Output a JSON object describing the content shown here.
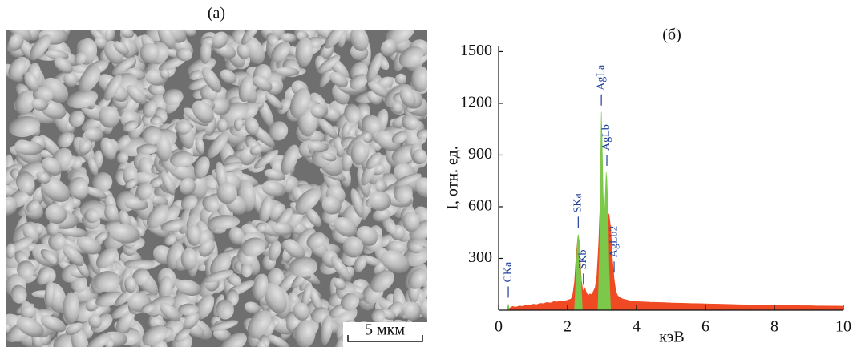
{
  "panel_a": {
    "title": "(а)",
    "scale_bar": "5 мкм"
  },
  "chart_data": {
    "type": "area",
    "title": "(б)",
    "xlabel": "кэВ",
    "ylabel": "I, отн. ед.",
    "xlim": [
      0,
      10
    ],
    "ylim": [
      0,
      1530
    ],
    "xticks": [
      0,
      2,
      4,
      6,
      8,
      10
    ],
    "yticks": [
      300,
      600,
      900,
      1200,
      1500
    ],
    "series": [
      {
        "color": "#ef4a23",
        "x": [
          0.3,
          0.4,
          0.5,
          0.6,
          0.7,
          0.8,
          0.9,
          1.0,
          1.1,
          1.2,
          1.3,
          1.4,
          1.5,
          1.6,
          1.7,
          1.8,
          1.9,
          2.0,
          2.1,
          2.15,
          2.2,
          2.25,
          2.3,
          2.35,
          2.4,
          2.45,
          2.5,
          2.55,
          2.6,
          2.65,
          2.7,
          2.75,
          2.8,
          2.85,
          2.9,
          2.95,
          3.0,
          3.05,
          3.1,
          3.15,
          3.2,
          3.25,
          3.3,
          3.35,
          3.4,
          3.45,
          3.5,
          3.6,
          3.7,
          3.8,
          3.9,
          4.0,
          4.2,
          4.4,
          4.6,
          4.8,
          5.0,
          5.2,
          5.4,
          5.6,
          5.8,
          6.0,
          6.2,
          6.4,
          6.6,
          6.8,
          7.0,
          7.2,
          7.4,
          7.6,
          7.8,
          8.0,
          8.2,
          8.4,
          8.6,
          8.8,
          9.0,
          9.2,
          9.4,
          9.6,
          9.8,
          10.0
        ],
        "values": [
          10,
          22,
          18,
          25,
          22,
          30,
          28,
          35,
          32,
          40,
          38,
          45,
          42,
          50,
          48,
          55,
          52,
          58,
          65,
          90,
          160,
          320,
          430,
          360,
          170,
          110,
          130,
          100,
          85,
          95,
          90,
          110,
          130,
          200,
          380,
          650,
          700,
          520,
          480,
          520,
          560,
          480,
          300,
          180,
          110,
          85,
          75,
          65,
          60,
          55,
          52,
          50,
          48,
          46,
          45,
          44,
          42,
          41,
          40,
          39,
          38,
          37,
          36,
          35,
          34,
          33,
          32,
          31,
          30,
          30,
          29,
          28,
          28,
          27,
          27,
          26,
          26,
          25,
          25,
          24,
          24,
          23
        ]
      },
      {
        "color": "#7cc84a",
        "x": [
          0.24,
          0.28,
          0.32,
          2.2,
          2.25,
          2.28,
          2.31,
          2.34,
          2.38,
          2.43,
          2.88,
          2.93,
          2.96,
          2.98,
          3.0,
          3.03,
          3.06,
          3.09,
          3.12,
          3.14,
          3.17,
          3.2,
          3.25
        ],
        "values": [
          0,
          35,
          0,
          0,
          200,
          380,
          440,
          400,
          220,
          0,
          0,
          350,
          900,
          1150,
          1000,
          700,
          500,
          650,
          800,
          760,
          600,
          250,
          0
        ]
      }
    ],
    "annotations": [
      {
        "label": "CKa",
        "x": 0.28
      },
      {
        "label": "SKa",
        "x": 2.31
      },
      {
        "label": "SKb",
        "x": 2.46
      },
      {
        "label": "AgLa",
        "x": 2.98
      },
      {
        "label": "AgLb",
        "x": 3.14
      },
      {
        "label": "AgLb2",
        "x": 3.35
      }
    ]
  }
}
